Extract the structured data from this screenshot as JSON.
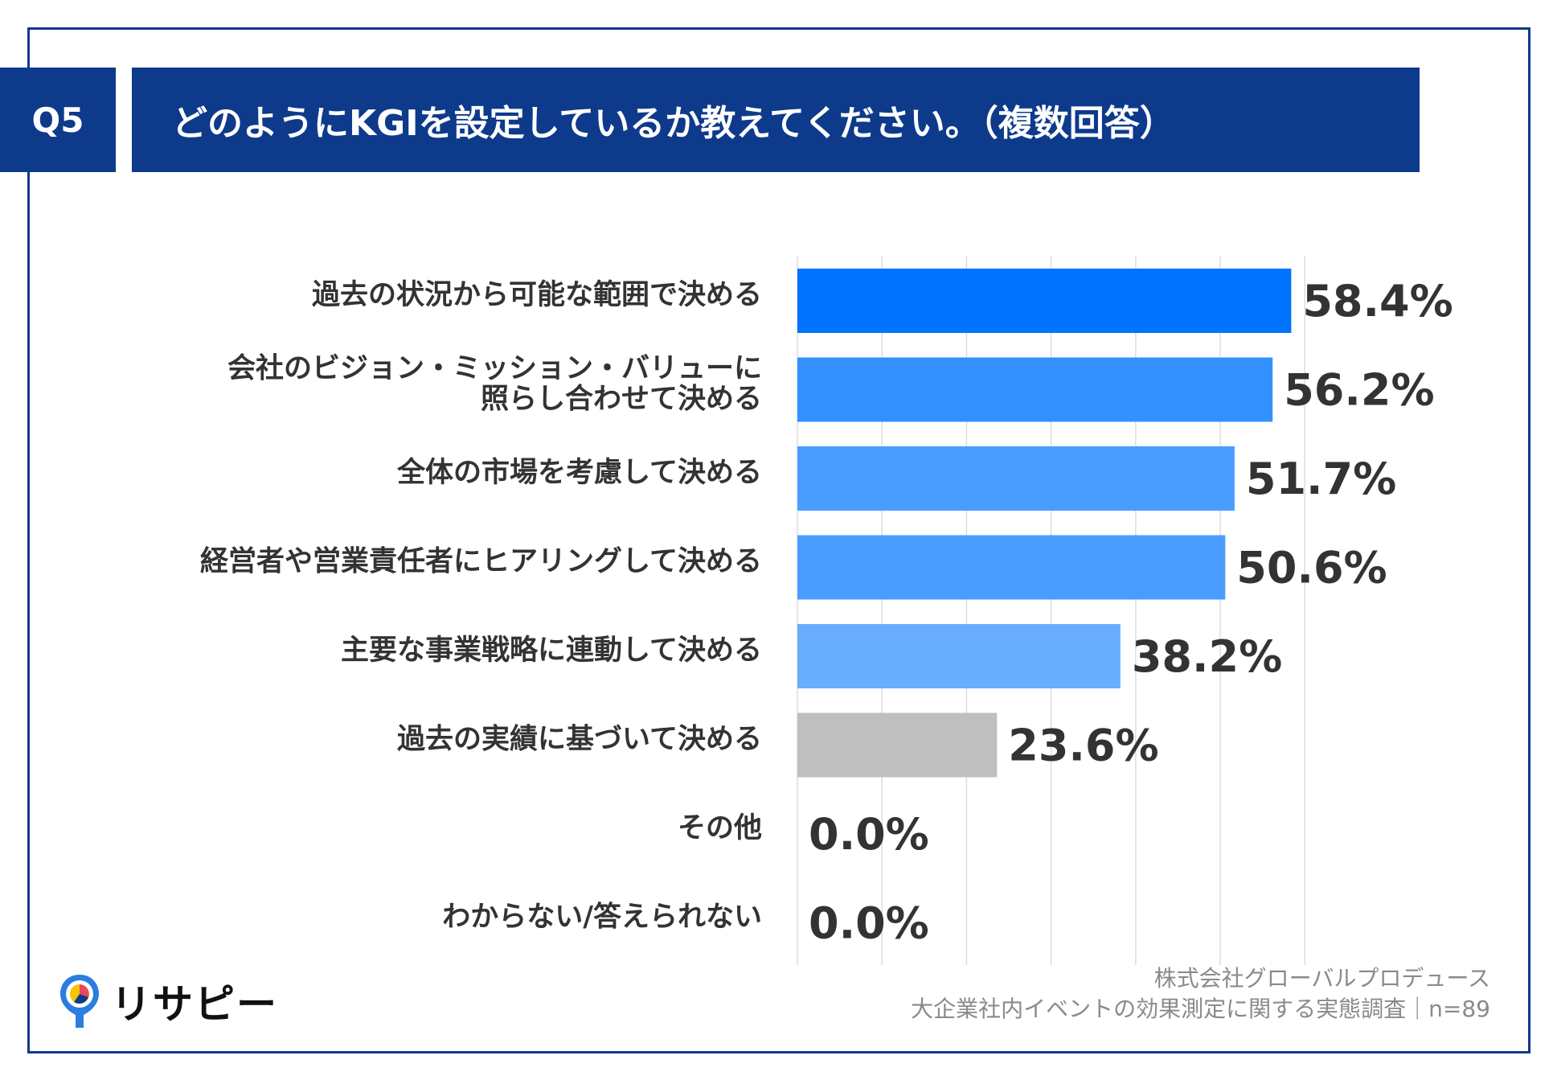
{
  "header": {
    "q_label": "Q5",
    "title": "どのようにKGIを設定しているか教えてください。（複数回答）"
  },
  "chart_data": {
    "type": "bar",
    "orientation": "horizontal",
    "title": "どのようにKGIを設定しているか教えてください。（複数回答）",
    "categories": [
      [
        "過去の状況から可能な範囲で決める"
      ],
      [
        "会社のビジョン・ミッション・バリューに",
        "照らし合わせて決める"
      ],
      [
        "全体の市場を考慮して決める"
      ],
      [
        "経営者や営業責任者にヒアリングして決める"
      ],
      [
        "主要な事業戦略に連動して決める"
      ],
      [
        "過去の実績に基づいて決める"
      ],
      [
        "その他"
      ],
      [
        "わからない/答えられない"
      ]
    ],
    "values": [
      58.4,
      56.2,
      51.7,
      50.6,
      38.2,
      23.6,
      0.0,
      0.0
    ],
    "value_labels": [
      "58.4%",
      "56.2%",
      "51.7%",
      "50.6%",
      "38.2%",
      "23.6%",
      "0.0%",
      "0.0%"
    ],
    "colors": [
      "#0073ff",
      "#3391ff",
      "#4a9dff",
      "#4a9dff",
      "#69adff",
      "#bfbfbf",
      "#bfbfbf",
      "#bfbfbf"
    ],
    "xlim": [
      0,
      60
    ],
    "grid": true,
    "unit": "%"
  },
  "logo": {
    "text": "リサピー",
    "icon": "map-pin-icon",
    "colors": [
      "#0d3a8b",
      "#f5c400",
      "#e8475f",
      "#2b7de0"
    ]
  },
  "source": {
    "line1": "株式会社グローバルプロデュース",
    "line2": "大企業社内イベントの効果測定に関する実態調査｜n=89"
  },
  "colors": {
    "brand": "#0d3a8b",
    "grid": "#dddddd"
  }
}
